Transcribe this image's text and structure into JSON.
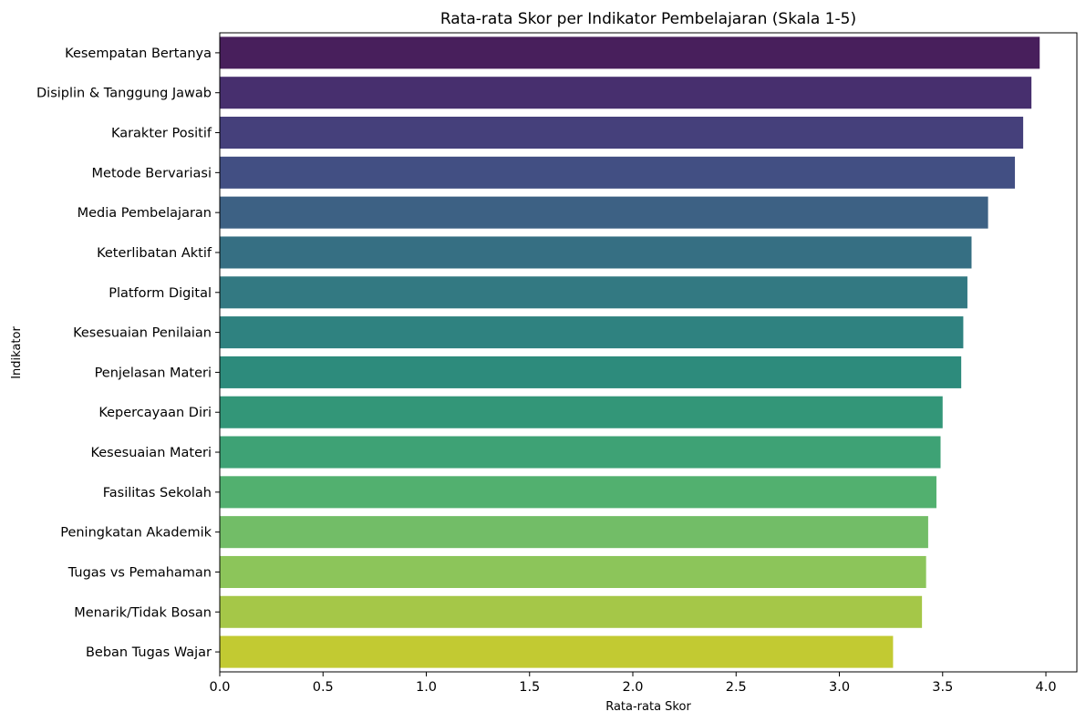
{
  "chart_data": {
    "type": "bar",
    "orientation": "horizontal",
    "title": "Rata-rata Skor per Indikator Pembelajaran (Skala 1-5)",
    "xlabel": "Rata-rata Skor",
    "ylabel": "Indikator",
    "xlim": [
      0,
      4.15
    ],
    "xticks": [
      "0.0",
      "0.5",
      "1.0",
      "1.5",
      "2.0",
      "2.5",
      "3.0",
      "3.5",
      "4.0"
    ],
    "grid": false,
    "legend": "none",
    "categories": [
      "Kesempatan Bertanya",
      "Disiplin & Tanggung Jawab",
      "Karakter Positif",
      "Metode Bervariasi",
      "Media Pembelajaran",
      "Keterlibatan Aktif",
      "Platform Digital",
      "Kesesuaian Penilaian",
      "Penjelasan Materi",
      "Kepercayaan Diri",
      "Kesesuaian Materi",
      "Fasilitas Sekolah",
      "Peningkatan Akademik",
      "Tugas vs Pemahaman",
      "Menarik/Tidak Bosan",
      "Beban Tugas Wajar"
    ],
    "values": [
      3.97,
      3.93,
      3.89,
      3.85,
      3.72,
      3.64,
      3.62,
      3.6,
      3.59,
      3.5,
      3.49,
      3.47,
      3.43,
      3.42,
      3.4,
      3.26
    ],
    "colors": [
      "#481f5c",
      "#472f6e",
      "#45407b",
      "#424f83",
      "#3d6184",
      "#366f83",
      "#337982",
      "#2f8280",
      "#2d8b7c",
      "#339678",
      "#3ea275",
      "#52b06f",
      "#72bd67",
      "#8cc55a",
      "#a5c748",
      "#c2ca32"
    ],
    "palette": "viridis"
  }
}
